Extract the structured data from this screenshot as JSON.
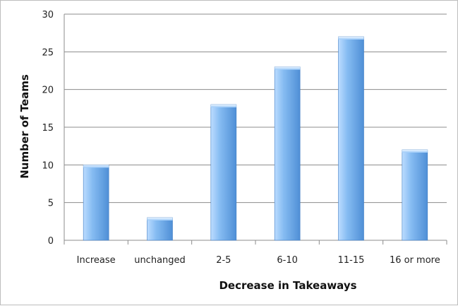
{
  "chart_data": {
    "type": "bar",
    "title": "",
    "xlabel": "Decrease in Takeaways",
    "ylabel": "Number of Teams",
    "categories": [
      "Increase",
      "unchanged",
      "2-5",
      "6-10",
      "11-15",
      "16 or more"
    ],
    "values": [
      10,
      3,
      18,
      23,
      27,
      12
    ],
    "ylim": [
      0,
      30
    ],
    "yticks": [
      "0",
      "5",
      "10",
      "15",
      "20",
      "25",
      "30"
    ],
    "grid": true,
    "legend": "none",
    "colors": {
      "bar_light": "#bcdcff",
      "bar_mid": "#86bcf2",
      "bar_dark": "#4f8fd6",
      "bar_edge": "#3f7cc4",
      "grid": "#8c8c8c"
    }
  }
}
